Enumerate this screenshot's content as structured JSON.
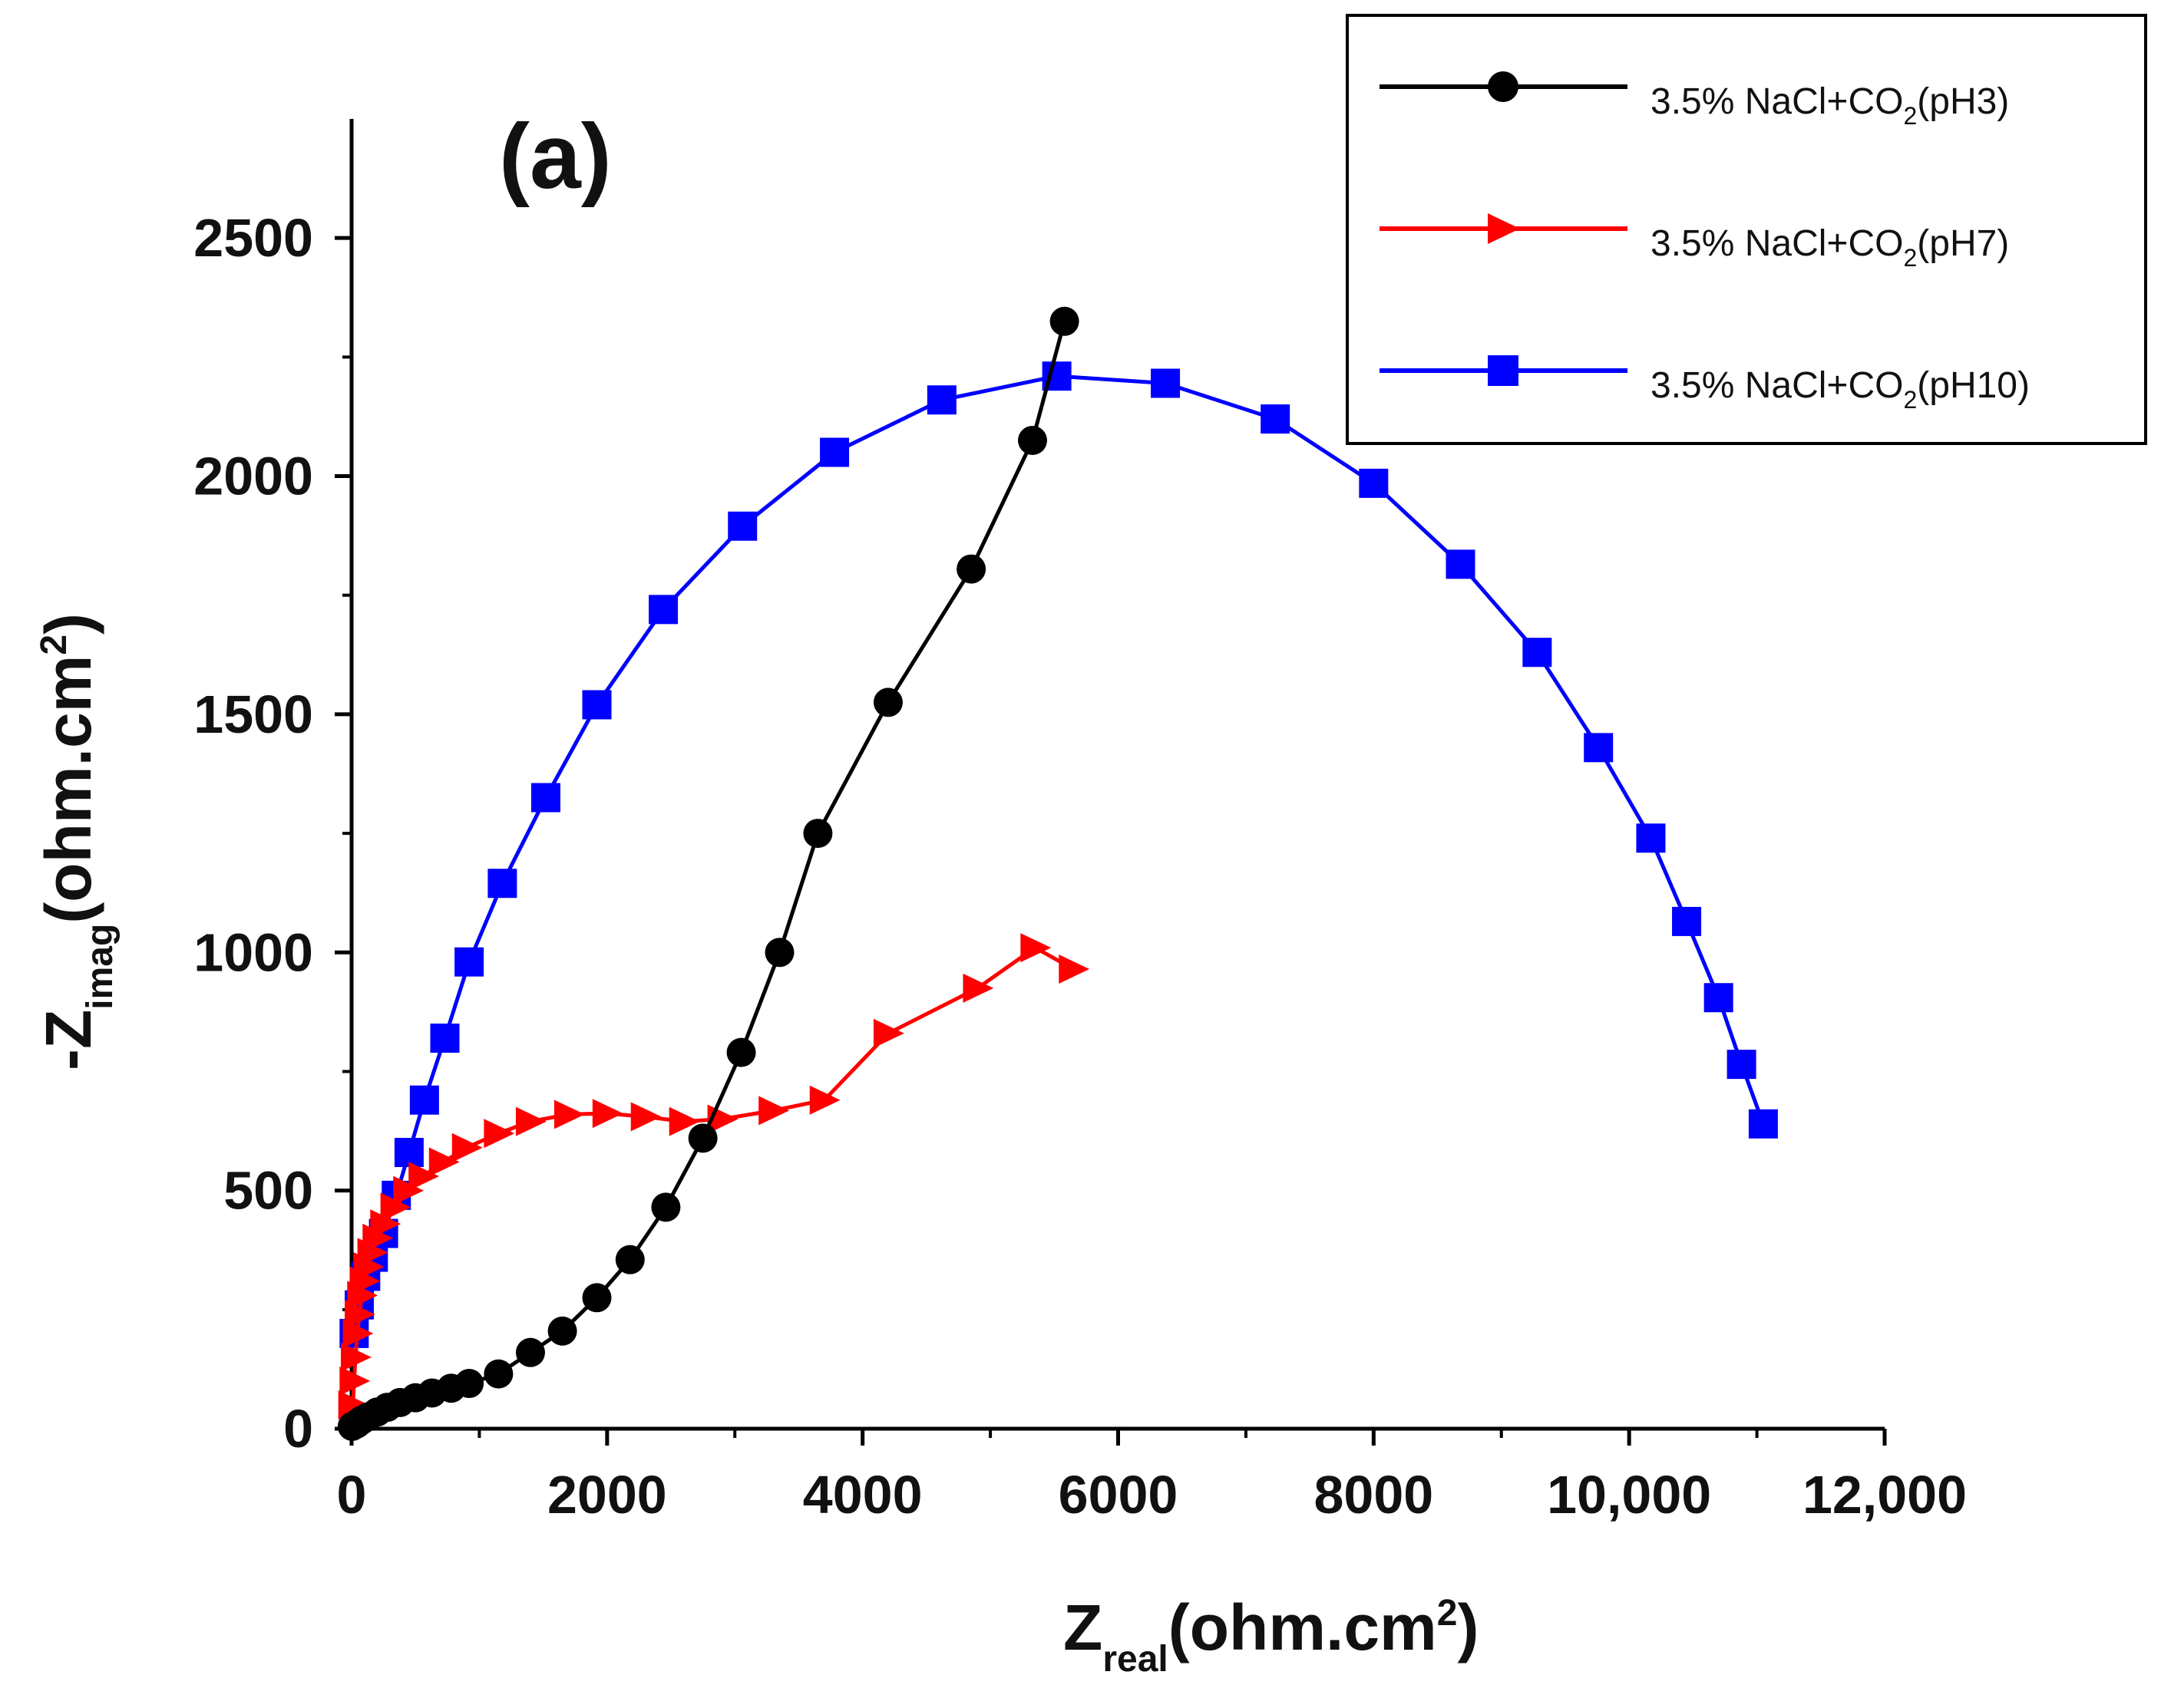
{
  "chart_data": {
    "type": "scatter",
    "panel_label": "(a)",
    "xlabel": {
      "main": "Z",
      "sub": "real",
      "unit": "(ohm.cm",
      "unit_sup": "2",
      "unit_close": ")"
    },
    "ylabel": {
      "main": "-Z",
      "sub": "imag",
      "unit": "(ohm.cm",
      "unit_sup": "2",
      "unit_close": ")"
    },
    "xlim": [
      0,
      12000
    ],
    "ylim": [
      0,
      2750
    ],
    "xticks": [
      0,
      2000,
      4000,
      6000,
      8000,
      10000,
      12000
    ],
    "xtick_labels": [
      "0",
      "2000",
      "4000",
      "6000",
      "8000",
      "10,000",
      "12,000"
    ],
    "yticks": [
      0,
      500,
      1000,
      1500,
      2000,
      2500
    ],
    "ytick_labels": [
      "0",
      "500",
      "1000",
      "1500",
      "2000",
      "2500"
    ],
    "legend_position": "top-right",
    "series": [
      {
        "name": "3.5% NaCl+CO2(pH3)",
        "legend_main": "3.5%  NaCl+CO",
        "legend_sub": "2",
        "legend_tail": "(pH3)",
        "color": "#000000",
        "marker": "circle",
        "x": [
          5,
          40,
          80,
          130,
          200,
          280,
          380,
          500,
          630,
          780,
          920,
          1150,
          1400,
          1650,
          1920,
          2180,
          2460,
          2750,
          3050,
          3350,
          3650,
          4200,
          4850,
          5330,
          5580
        ],
        "y": [
          5,
          10,
          18,
          25,
          35,
          45,
          55,
          65,
          75,
          85,
          95,
          115,
          160,
          205,
          275,
          355,
          465,
          610,
          790,
          1000,
          1250,
          1525,
          1805,
          2075,
          2325
        ]
      },
      {
        "name": "3.5% NaCl+CO2(pH7)",
        "legend_main": "3.5%  NaCl+CO",
        "legend_sub": "2",
        "legend_tail": "(pH7)",
        "color": "#ff0000",
        "marker": "triangle-right",
        "x": [
          10,
          20,
          30,
          45,
          60,
          80,
          100,
          130,
          160,
          200,
          260,
          340,
          440,
          560,
          720,
          900,
          1150,
          1400,
          1700,
          2000,
          2300,
          2600,
          2900,
          3300,
          3700,
          4200,
          4900,
          5350,
          5650
        ],
        "y": [
          50,
          100,
          150,
          200,
          240,
          280,
          310,
          340,
          370,
          400,
          430,
          465,
          500,
          530,
          560,
          590,
          620,
          645,
          660,
          662,
          655,
          645,
          650,
          668,
          690,
          830,
          925,
          1010,
          965
        ]
      },
      {
        "name": "3.5% NaCl+CO2(pH10)",
        "legend_main": "3.5%  NaCl+CO",
        "legend_sub": "2",
        "legend_tail": "(pH10)",
        "color": "#0000ff",
        "marker": "square",
        "x": [
          20,
          60,
          110,
          170,
          250,
          350,
          450,
          570,
          730,
          920,
          1180,
          1520,
          1920,
          2440,
          3060,
          3780,
          4620,
          5520,
          6370,
          7230,
          8000,
          8680,
          9280,
          9760,
          10170,
          10450,
          10700,
          10880,
          11050
        ],
        "y": [
          200,
          260,
          320,
          360,
          410,
          490,
          580,
          690,
          820,
          980,
          1145,
          1325,
          1520,
          1720,
          1895,
          2050,
          2160,
          2210,
          2195,
          2120,
          1985,
          1815,
          1630,
          1430,
          1240,
          1065,
          905,
          765,
          640
        ]
      }
    ]
  }
}
